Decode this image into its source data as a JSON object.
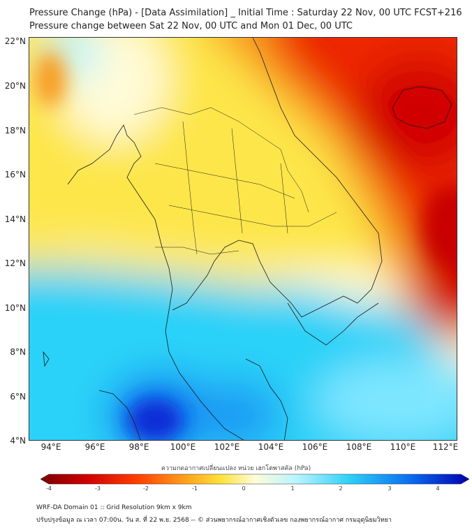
{
  "header": {
    "title_line1": "Pressure Change (hPa) - [Data Assimilation] _ Initial Time : Saturday 22 Nov, 00 UTC FCST+216",
    "title_line2": "Pressure change between Sat 22 Nov, 00 UTC and Mon 01 Dec, 00 UTC"
  },
  "map": {
    "lat_labels": [
      "22°N",
      "20°N",
      "18°N",
      "16°N",
      "14°N",
      "12°N",
      "10°N",
      "8°N",
      "6°N",
      "4°N"
    ],
    "lon_labels": [
      "94°E",
      "96°E",
      "98°E",
      "100°E",
      "102°E",
      "104°E",
      "106°E",
      "108°E",
      "110°E",
      "112°E"
    ],
    "lat_range": [
      4,
      22.2
    ],
    "lon_range": [
      93,
      112.5
    ],
    "field_regions": [
      {
        "name": "strong-rise-northeast",
        "value": -3.8,
        "color": "#d10000"
      },
      {
        "name": "rise-east",
        "value": -3.0,
        "color": "#ec2600"
      },
      {
        "name": "rise-mid",
        "value": -2.0,
        "color": "#f89a1c"
      },
      {
        "name": "slight-rise",
        "value": -1.0,
        "color": "#fde64a"
      },
      {
        "name": "near-zero",
        "value": 0.0,
        "color": "#fffbd8"
      },
      {
        "name": "slight-fall",
        "value": 1.0,
        "color": "#9ff0ff"
      },
      {
        "name": "fall",
        "value": 2.0,
        "color": "#2bd1f8"
      },
      {
        "name": "strong-fall-south",
        "value": 3.5,
        "color": "#0a2ad6"
      }
    ]
  },
  "colorbar": {
    "title": "ความกดอากาศเปลี่ยนแปลง หน่วย เฮกโตพาสคัล (hPa)",
    "ticks": [
      "-4",
      "-3",
      "-2",
      "-1",
      "0",
      "1",
      "2",
      "3",
      "4"
    ],
    "colors": [
      "#7a0000",
      "#d10000",
      "#ff3a00",
      "#ff9a1a",
      "#ffe23a",
      "#fffcd8",
      "#b6f4ff",
      "#2fd0f8",
      "#0a6ff0",
      "#0000b0"
    ]
  },
  "footer": {
    "line1": "WRF-DA Domain 01 :: Grid Resolution 9km x 9km",
    "line2": "ปรับปรุงข้อมูล ณ เวลา 07:00น. วัน ส. ที่ 22 พ.ย. 2568 -- © ส่วนพยากรณ์อากาศเชิงตัวเลข กองพยากรณ์อากาศ กรมอุตุนิยมวิทยา"
  }
}
